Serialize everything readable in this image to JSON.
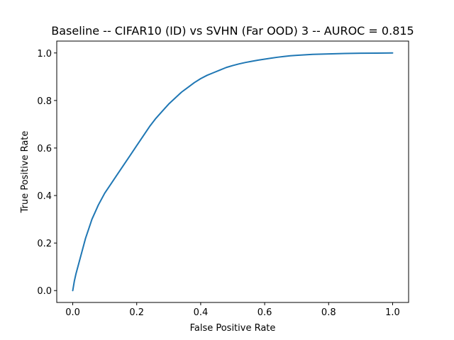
{
  "chart_data": {
    "type": "line",
    "title": "Baseline -- CIFAR10 (ID) vs SVHN (Far OOD) 3 -- AUROC = 0.815",
    "xlabel": "False Positive Rate",
    "ylabel": "True Positive Rate",
    "xlim": [
      -0.05,
      1.05
    ],
    "ylim": [
      -0.05,
      1.05
    ],
    "xticks": [
      0.0,
      0.2,
      0.4,
      0.6,
      0.8,
      1.0
    ],
    "xtick_labels": [
      "0.0",
      "0.2",
      "0.4",
      "0.6",
      "0.8",
      "1.0"
    ],
    "yticks": [
      0.0,
      0.2,
      0.4,
      0.6,
      0.8,
      1.0
    ],
    "ytick_labels": [
      "0.0",
      "0.2",
      "0.4",
      "0.6",
      "0.8",
      "1.0"
    ],
    "grid": false,
    "legend": "none",
    "series": [
      {
        "color": "#1f77b4",
        "x": [
          0.0,
          0.005,
          0.01,
          0.02,
          0.03,
          0.04,
          0.05,
          0.06,
          0.07,
          0.08,
          0.09,
          0.1,
          0.12,
          0.14,
          0.16,
          0.18,
          0.2,
          0.22,
          0.24,
          0.26,
          0.28,
          0.3,
          0.32,
          0.34,
          0.36,
          0.38,
          0.4,
          0.42,
          0.44,
          0.46,
          0.48,
          0.5,
          0.52,
          0.54,
          0.56,
          0.58,
          0.6,
          0.62,
          0.64,
          0.66,
          0.68,
          0.7,
          0.75,
          0.8,
          0.85,
          0.9,
          0.95,
          1.0
        ],
        "y": [
          0.0,
          0.04,
          0.07,
          0.12,
          0.17,
          0.22,
          0.26,
          0.3,
          0.33,
          0.36,
          0.385,
          0.41,
          0.45,
          0.49,
          0.53,
          0.57,
          0.61,
          0.65,
          0.69,
          0.725,
          0.755,
          0.785,
          0.81,
          0.835,
          0.855,
          0.875,
          0.892,
          0.906,
          0.917,
          0.928,
          0.939,
          0.947,
          0.954,
          0.96,
          0.965,
          0.97,
          0.974,
          0.978,
          0.982,
          0.985,
          0.988,
          0.99,
          0.994,
          0.996,
          0.998,
          0.999,
          0.9995,
          1.0
        ]
      }
    ]
  }
}
